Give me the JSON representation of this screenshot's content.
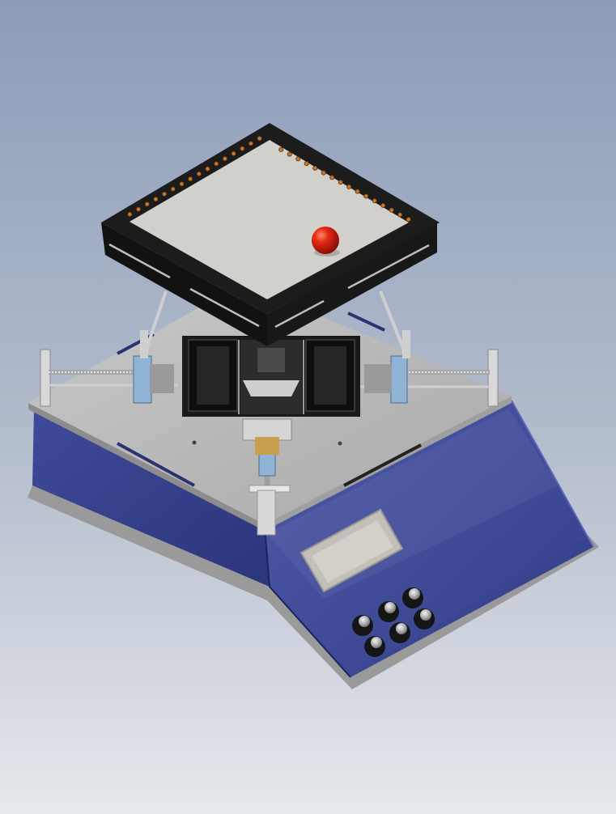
{
  "scene": {
    "subject": "ball-balancing-platform-render",
    "colors": {
      "background_top": "#8c9cb8",
      "background_bottom": "#e6e8ec",
      "base_panel": "#2e3a8c",
      "deck": "#bfbfbf",
      "plate_frame": "#141414",
      "plate_surface": "#cfcdc6",
      "ball": "#e01f10",
      "sensor_leds": "#c8782a",
      "lcd_screen": "#c2c0b8",
      "knobs": "#151515"
    },
    "knob_count": 6,
    "sensor_led_count_per_edge": 16
  }
}
